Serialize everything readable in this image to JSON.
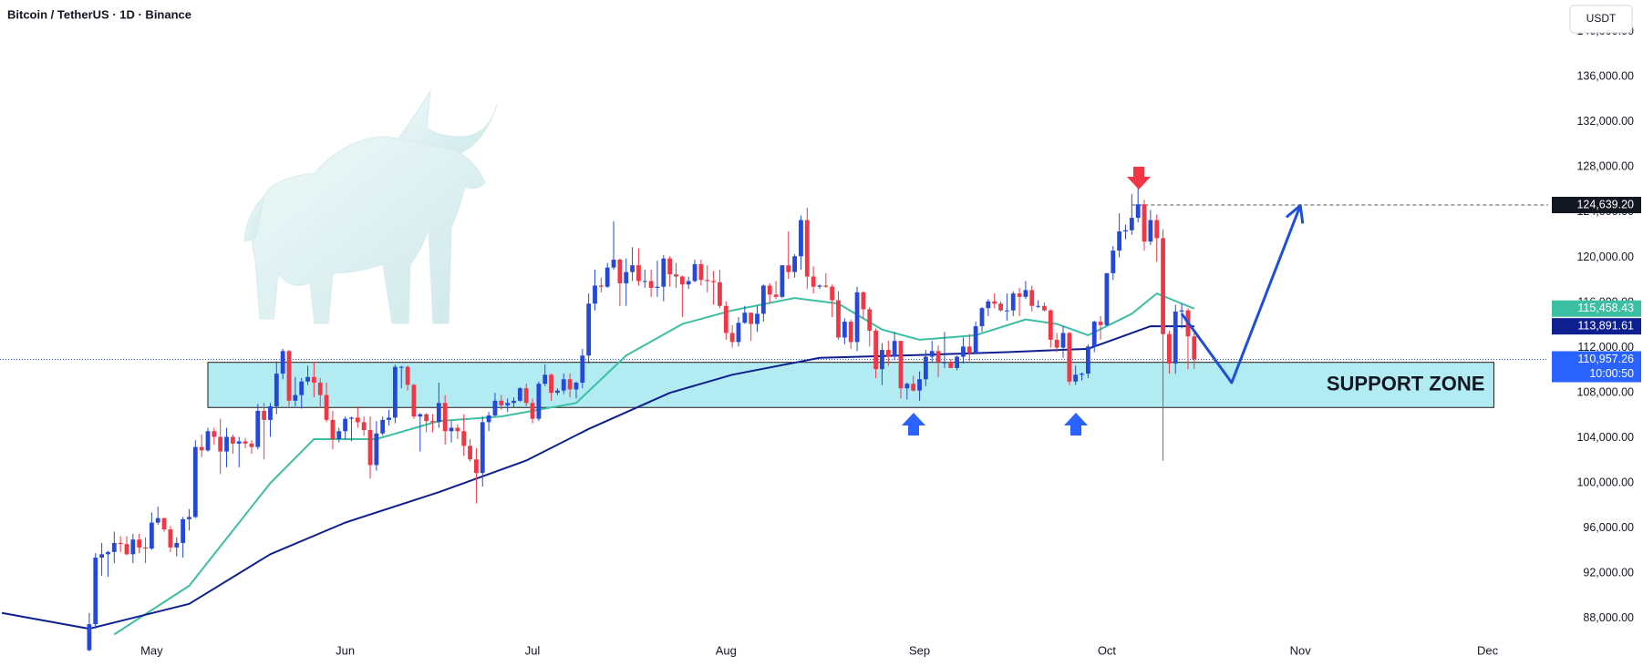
{
  "chart_data": {
    "type": "candlestick",
    "title": "Bitcoin / TetherUS · 1D · Binance",
    "currency": "USDT",
    "up_color": "#2449d8",
    "down_color": "#f23645",
    "xlim": [
      5.7,
      253.7
    ],
    "xticks": [
      {
        "value": 30,
        "label": "May"
      },
      {
        "value": 61,
        "label": "Jun"
      },
      {
        "value": 91,
        "label": "Jul"
      },
      {
        "value": 122,
        "label": "Aug"
      },
      {
        "value": 153,
        "label": "Sep"
      },
      {
        "value": 183,
        "label": "Oct"
      },
      {
        "value": 214,
        "label": "Nov"
      },
      {
        "value": 244,
        "label": "Dec"
      }
    ],
    "ylim": [
      86300,
      142800
    ],
    "yticks": [
      {
        "value": 88000,
        "label": "88,000.00"
      },
      {
        "value": 92000,
        "label": "92,000.00"
      },
      {
        "value": 96000,
        "label": "96,000.00"
      },
      {
        "value": 100000,
        "label": "100,000.00"
      },
      {
        "value": 104000,
        "label": "104,000.00"
      },
      {
        "value": 108000,
        "label": "108,000.00"
      },
      {
        "value": 112000,
        "label": "112,000.00"
      },
      {
        "value": 116000,
        "label": "116,000.00"
      },
      {
        "value": 120000,
        "label": "120,000.00"
      },
      {
        "value": 124000,
        "label": "124,000.00"
      },
      {
        "value": 128000,
        "label": "128,000.00"
      },
      {
        "value": 132000,
        "label": "132,000.00"
      },
      {
        "value": 136000,
        "label": "136,000.00"
      },
      {
        "value": 140000,
        "label": "140,000.00"
      }
    ],
    "x": [
      20,
      21,
      22,
      23,
      24,
      25,
      26,
      27,
      28,
      29,
      30,
      31,
      32,
      33,
      34,
      35,
      36,
      37,
      38,
      39,
      40,
      41,
      42,
      43,
      44,
      45,
      46,
      47,
      48,
      49,
      50,
      51,
      52,
      53,
      54,
      55,
      56,
      57,
      58,
      59,
      60,
      61,
      62,
      63,
      64,
      65,
      66,
      67,
      68,
      69,
      70,
      71,
      72,
      73,
      74,
      75,
      76,
      77,
      78,
      79,
      80,
      81,
      82,
      83,
      84,
      85,
      86,
      87,
      88,
      89,
      90,
      91,
      92,
      93,
      94,
      95,
      96,
      97,
      98,
      99,
      100,
      101,
      102,
      103,
      104,
      105,
      106,
      107,
      108,
      109,
      110,
      111,
      112,
      113,
      114,
      115,
      116,
      117,
      118,
      119,
      120,
      121,
      122,
      123,
      124,
      125,
      126,
      127,
      128,
      129,
      130,
      131,
      132,
      133,
      134,
      135,
      136,
      137,
      138,
      139,
      140,
      141,
      142,
      143,
      144,
      145,
      146,
      147,
      148,
      149,
      150,
      151,
      152,
      153,
      154,
      155,
      156,
      157,
      158,
      159,
      160,
      161,
      162,
      163,
      164,
      165,
      166,
      167,
      168,
      169,
      170,
      171,
      172,
      173,
      174,
      175,
      176,
      177,
      178,
      179,
      180,
      181,
      182,
      183,
      184,
      185,
      186,
      187,
      188,
      189,
      190,
      191,
      192,
      193,
      194,
      195,
      196,
      197
    ],
    "candles": [
      [
        85200,
        88500,
        85100,
        87500
      ],
      [
        87500,
        93800,
        87100,
        93400
      ],
      [
        93400,
        94700,
        91800,
        93700
      ],
      [
        93700,
        94000,
        91700,
        93900
      ],
      [
        93900,
        95700,
        92900,
        94700
      ],
      [
        94700,
        95300,
        93900,
        94600
      ],
      [
        94600,
        95300,
        93600,
        93700
      ],
      [
        93700,
        95500,
        92900,
        95000
      ],
      [
        95000,
        95500,
        93800,
        94300
      ],
      [
        94300,
        95200,
        92900,
        94200
      ],
      [
        94200,
        97400,
        94100,
        96500
      ],
      [
        96500,
        97900,
        96300,
        96900
      ],
      [
        96900,
        96900,
        95700,
        95900
      ],
      [
        95900,
        96200,
        93900,
        94300
      ],
      [
        94300,
        95200,
        93500,
        94700
      ],
      [
        94700,
        97000,
        93400,
        96800
      ],
      [
        96800,
        97700,
        95800,
        97000
      ],
      [
        97000,
        103800,
        96900,
        103200
      ],
      [
        103200,
        104300,
        102300,
        102900
      ],
      [
        102900,
        104900,
        102800,
        104600
      ],
      [
        104600,
        104900,
        103400,
        104100
      ],
      [
        104100,
        105700,
        100800,
        102800
      ],
      [
        102800,
        104900,
        101400,
        104100
      ],
      [
        104100,
        104300,
        102600,
        103500
      ],
      [
        103500,
        104100,
        101400,
        103700
      ],
      [
        103700,
        104000,
        103100,
        103500
      ],
      [
        103500,
        103800,
        102600,
        103200
      ],
      [
        103200,
        107000,
        103000,
        106400
      ],
      [
        106400,
        107100,
        102100,
        105600
      ],
      [
        105600,
        107100,
        104100,
        106800
      ],
      [
        106800,
        110800,
        106100,
        109700
      ],
      [
        109700,
        111900,
        109200,
        111700
      ],
      [
        111700,
        111800,
        106800,
        107300
      ],
      [
        107300,
        109400,
        106800,
        107800
      ],
      [
        107800,
        109300,
        106600,
        109000
      ],
      [
        109000,
        110400,
        108700,
        109400
      ],
      [
        109400,
        110700,
        107600,
        108900
      ],
      [
        108900,
        109300,
        106700,
        107800
      ],
      [
        107800,
        108900,
        105400,
        105600
      ],
      [
        105600,
        106400,
        103000,
        103900
      ],
      [
        103900,
        104900,
        103600,
        104600
      ],
      [
        104600,
        105900,
        103900,
        105700
      ],
      [
        105700,
        105900,
        103700,
        105800
      ],
      [
        105800,
        106800,
        104900,
        105400
      ],
      [
        105400,
        105900,
        104200,
        104700
      ],
      [
        104700,
        105900,
        100400,
        101600
      ],
      [
        101600,
        105500,
        101100,
        104400
      ],
      [
        104400,
        105900,
        104200,
        105600
      ],
      [
        105600,
        106500,
        105100,
        105800
      ],
      [
        105800,
        110500,
        105300,
        110300
      ],
      [
        110300,
        110400,
        108400,
        110300
      ],
      [
        110300,
        110400,
        108200,
        108700
      ],
      [
        108700,
        108800,
        105700,
        105900
      ],
      [
        105900,
        106200,
        102800,
        106100
      ],
      [
        106100,
        106200,
        104500,
        105500
      ],
      [
        105500,
        106100,
        104500,
        105400
      ],
      [
        105400,
        108900,
        104900,
        107100
      ],
      [
        107100,
        107800,
        103400,
        104600
      ],
      [
        104600,
        105500,
        103600,
        104900
      ],
      [
        104900,
        105200,
        103900,
        104600
      ],
      [
        104600,
        106100,
        102400,
        103300
      ],
      [
        103300,
        103900,
        101900,
        102100
      ],
      [
        102100,
        103100,
        98200,
        100900
      ],
      [
        100900,
        105900,
        99700,
        105400
      ],
      [
        105400,
        106300,
        104600,
        106000
      ],
      [
        106000,
        108000,
        105900,
        107300
      ],
      [
        107300,
        107800,
        106500,
        106900
      ],
      [
        106900,
        107500,
        106300,
        107100
      ],
      [
        107100,
        107600,
        106700,
        107300
      ],
      [
        107300,
        108500,
        107200,
        108400
      ],
      [
        108400,
        108800,
        106800,
        107100
      ],
      [
        107100,
        107500,
        105300,
        105700
      ],
      [
        105700,
        109000,
        105500,
        108800
      ],
      [
        108800,
        110500,
        108600,
        109600
      ],
      [
        109600,
        109700,
        107300,
        108000
      ],
      [
        108000,
        108400,
        107800,
        108200
      ],
      [
        108200,
        109700,
        107900,
        109200
      ],
      [
        109200,
        109700,
        107600,
        108300
      ],
      [
        108300,
        109000,
        107500,
        108900
      ],
      [
        108900,
        111900,
        108400,
        111300
      ],
      [
        111300,
        116800,
        110600,
        115900
      ],
      [
        115900,
        118900,
        115300,
        117500
      ],
      [
        117500,
        118200,
        116900,
        117400
      ],
      [
        117400,
        119500,
        117300,
        119100
      ],
      [
        119100,
        123200,
        118900,
        119800
      ],
      [
        119800,
        119900,
        115700,
        117700
      ],
      [
        117700,
        119900,
        115700,
        118700
      ],
      [
        118700,
        120900,
        117900,
        119300
      ],
      [
        119300,
        120800,
        117500,
        117900
      ],
      [
        117900,
        118900,
        117300,
        117900
      ],
      [
        117900,
        118900,
        116500,
        117300
      ],
      [
        117300,
        119700,
        116500,
        117400
      ],
      [
        117400,
        120200,
        116100,
        119900
      ],
      [
        119900,
        120100,
        117400,
        118500
      ],
      [
        118500,
        119500,
        117300,
        118300
      ],
      [
        118300,
        118400,
        114700,
        117600
      ],
      [
        117600,
        118300,
        117200,
        117900
      ],
      [
        117900,
        119800,
        117800,
        119400
      ],
      [
        119400,
        119800,
        117500,
        118000
      ],
      [
        118000,
        119300,
        116900,
        117900
      ],
      [
        117900,
        118800,
        115800,
        117800
      ],
      [
        117800,
        118900,
        115500,
        115700
      ],
      [
        115700,
        116100,
        112700,
        113300
      ],
      [
        113300,
        114000,
        112000,
        112500
      ],
      [
        112500,
        114700,
        112100,
        114200
      ],
      [
        114200,
        115700,
        114100,
        115100
      ],
      [
        115100,
        115100,
        112600,
        114100
      ],
      [
        114100,
        115700,
        113400,
        115000
      ],
      [
        115000,
        117600,
        114300,
        117500
      ],
      [
        117500,
        117700,
        115900,
        116700
      ],
      [
        116700,
        117900,
        116300,
        116500
      ],
      [
        116500,
        119300,
        116400,
        119300
      ],
      [
        119300,
        122300,
        118100,
        118700
      ],
      [
        118700,
        120300,
        118200,
        120100
      ],
      [
        120100,
        123700,
        118900,
        123300
      ],
      [
        123300,
        124400,
        117200,
        118300
      ],
      [
        118300,
        119200,
        116800,
        117400
      ],
      [
        117400,
        117600,
        117200,
        117500
      ],
      [
        117500,
        118600,
        117300,
        117400
      ],
      [
        117400,
        117600,
        114700,
        116200
      ],
      [
        116200,
        117000,
        112700,
        112900
      ],
      [
        112900,
        114600,
        112300,
        114300
      ],
      [
        114300,
        114500,
        111900,
        112500
      ],
      [
        112500,
        117400,
        111700,
        116900
      ],
      [
        116900,
        117000,
        114600,
        115400
      ],
      [
        115400,
        115600,
        112100,
        113500
      ],
      [
        113500,
        113700,
        109300,
        110100
      ],
      [
        110100,
        112400,
        108700,
        111800
      ],
      [
        111800,
        112600,
        110400,
        111200
      ],
      [
        111200,
        113400,
        110900,
        112600
      ],
      [
        112600,
        112600,
        107500,
        108400
      ],
      [
        108400,
        108900,
        107400,
        108800
      ],
      [
        108800,
        109500,
        108100,
        108200
      ],
      [
        108200,
        109900,
        107300,
        109200
      ],
      [
        109200,
        111800,
        108600,
        111200
      ],
      [
        111200,
        112600,
        110700,
        111700
      ],
      [
        111700,
        112200,
        109400,
        110700
      ],
      [
        110700,
        113400,
        110200,
        110700
      ],
      [
        110700,
        111000,
        110200,
        110200
      ],
      [
        110200,
        111300,
        110000,
        111200
      ],
      [
        111200,
        112900,
        110600,
        112100
      ],
      [
        112100,
        113200,
        110800,
        111500
      ],
      [
        111500,
        114300,
        111500,
        113900
      ],
      [
        113900,
        115600,
        113400,
        115500
      ],
      [
        115500,
        116300,
        114800,
        116100
      ],
      [
        116100,
        116800,
        115500,
        115900
      ],
      [
        115900,
        116100,
        115200,
        115300
      ],
      [
        115300,
        116800,
        114400,
        115300
      ],
      [
        115300,
        117000,
        114800,
        116800
      ],
      [
        116800,
        117300,
        114800,
        116500
      ],
      [
        116500,
        117900,
        116300,
        117100
      ],
      [
        117100,
        117500,
        115200,
        115700
      ],
      [
        115700,
        116200,
        115500,
        115700
      ],
      [
        115700,
        116000,
        115200,
        115300
      ],
      [
        115300,
        115400,
        112000,
        112700
      ],
      [
        112700,
        113300,
        111600,
        112000
      ],
      [
        112000,
        113900,
        111100,
        113300
      ],
      [
        113300,
        113400,
        108700,
        109000
      ],
      [
        109000,
        110400,
        108700,
        109600
      ],
      [
        109600,
        109800,
        109100,
        109700
      ],
      [
        109700,
        112300,
        109300,
        112100
      ],
      [
        112100,
        114400,
        111600,
        114300
      ],
      [
        114300,
        114800,
        112700,
        114000
      ],
      [
        114000,
        118600,
        113900,
        118600
      ],
      [
        118600,
        121000,
        118000,
        120600
      ],
      [
        120600,
        123900,
        120000,
        122300
      ],
      [
        122300,
        122900,
        121600,
        122400
      ],
      [
        122400,
        125600,
        122000,
        123500
      ],
      [
        123500,
        126200,
        123100,
        124700
      ],
      [
        124700,
        125100,
        120600,
        121400
      ],
      [
        121400,
        124200,
        121100,
        123300
      ],
      [
        123300,
        123800,
        119600,
        121700
      ],
      [
        121700,
        122500,
        102000,
        113200
      ],
      [
        113200,
        113500,
        109700,
        110600
      ],
      [
        110600,
        115800,
        109700,
        115200
      ],
      [
        115200,
        115900,
        113700,
        115300
      ],
      [
        115300,
        115500,
        110100,
        113000
      ],
      [
        113000,
        113600,
        110100,
        110957.26
      ]
    ],
    "series": [
      {
        "color": "#3cbfa2",
        "price_label": "115,458.43",
        "x": [
          24,
          36,
          49,
          56,
          66,
          76,
          86,
          98,
          106,
          115,
          123,
          133,
          140,
          147,
          153,
          162,
          170,
          175,
          180,
          187,
          191,
          197
        ],
        "values": [
          86600,
          90900,
          100000,
          103900,
          103900,
          105500,
          105900,
          107100,
          111300,
          114100,
          115300,
          116400,
          115900,
          113600,
          112700,
          113100,
          114500,
          114100,
          113100,
          115000,
          116800,
          115458.43
        ]
      },
      {
        "color": "#0e1f8f",
        "price_label": "113,891.61",
        "x": [
          6,
          20,
          36,
          49,
          61,
          76,
          90,
          100,
          113,
          123,
          137,
          150,
          167,
          180,
          190,
          197
        ],
        "values": [
          88500,
          87100,
          89300,
          93700,
          96500,
          99200,
          102000,
          104800,
          108000,
          109600,
          111100,
          111300,
          111600,
          111900,
          113900,
          113891.61
        ]
      }
    ],
    "support_zone": {
      "label": "SUPPORT ZONE",
      "x": [
        39,
        245
      ],
      "y": [
        106700,
        110700
      ]
    },
    "high_line": {
      "value": 124639.2,
      "label": "124,639.20",
      "x": 187
    },
    "last_price": {
      "value": 110957.26,
      "label": "110,957.26",
      "countdown": "10:00:50"
    },
    "projection": {
      "color": "#1e4fd8",
      "x": [
        195,
        203,
        214
      ],
      "values": [
        115000,
        108900,
        124600
      ]
    }
  }
}
